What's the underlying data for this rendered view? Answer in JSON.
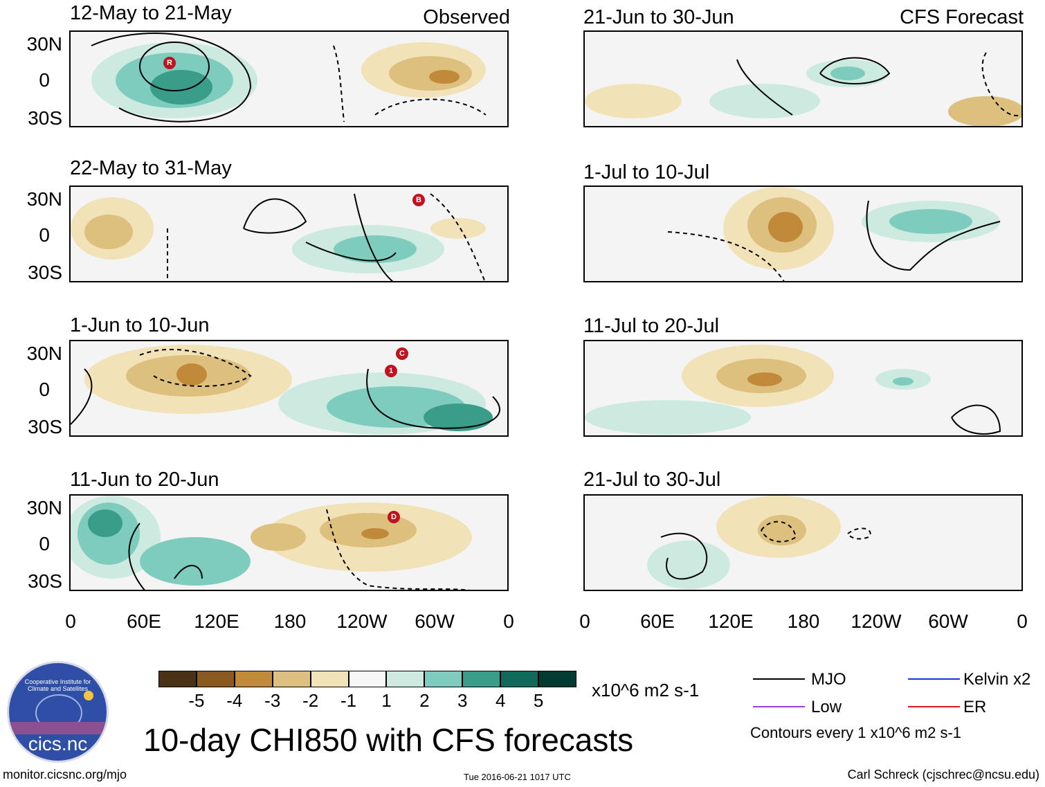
{
  "left_column_header": "Observed",
  "right_column_header": "CFS Forecast",
  "panels": [
    {
      "id": "obs-1",
      "title": "12-May to 21-May",
      "column": "observed",
      "markers": [
        "R"
      ]
    },
    {
      "id": "obs-2",
      "title": "22-May to 31-May",
      "column": "observed",
      "markers": [
        "B"
      ]
    },
    {
      "id": "obs-3",
      "title": "1-Jun to 10-Jun",
      "column": "observed",
      "markers": [
        "1",
        "C"
      ]
    },
    {
      "id": "obs-4",
      "title": "11-Jun to 20-Jun",
      "column": "observed",
      "markers": [
        "D"
      ]
    },
    {
      "id": "fc-1",
      "title": "21-Jun to 30-Jun",
      "column": "forecast",
      "markers": []
    },
    {
      "id": "fc-2",
      "title": "1-Jul to 10-Jul",
      "column": "forecast",
      "markers": []
    },
    {
      "id": "fc-3",
      "title": "11-Jul to 20-Jul",
      "column": "forecast",
      "markers": []
    },
    {
      "id": "fc-4",
      "title": "21-Jul to 30-Jul",
      "column": "forecast",
      "markers": []
    }
  ],
  "lat_labels": [
    "30N",
    "0",
    "30S"
  ],
  "lon_labels": [
    "0",
    "60E",
    "120E",
    "180",
    "120W",
    "60W",
    "0"
  ],
  "colorbar": {
    "colors": [
      "#4a3216",
      "#8b5a1f",
      "#c18a3a",
      "#ddbf7e",
      "#f2e2b8",
      "#f7f7f7",
      "#cdeae1",
      "#7dccbd",
      "#3a9d8a",
      "#11695b",
      "#033b33"
    ],
    "ticks": [
      "-5",
      "-4",
      "-3",
      "-2",
      "-1",
      "1",
      "2",
      "3",
      "4",
      "5"
    ],
    "units": "x10^6 m2 s-1"
  },
  "legend": {
    "items": [
      {
        "label": "MJO",
        "color": "#000000"
      },
      {
        "label": "Kelvin x2",
        "color": "#1f2fd6"
      },
      {
        "label": "Low",
        "color": "#9b3fe0"
      },
      {
        "label": "ER",
        "color": "#e01a1a"
      }
    ],
    "contour_note": "Contours every 1 x10^6 m2 s-1"
  },
  "logo_text": "cics.nc",
  "logo_ring_text": "Cooperative Institute for Climate and Satellites",
  "main_title": "10-day CHI850 with CFS forecasts",
  "footer": {
    "left": "monitor.cicsnc.org/mjo",
    "center": "Tue 2016-06-21 1017 UTC",
    "right": "Carl Schreck (cjschrec@ncsu.edu)"
  }
}
